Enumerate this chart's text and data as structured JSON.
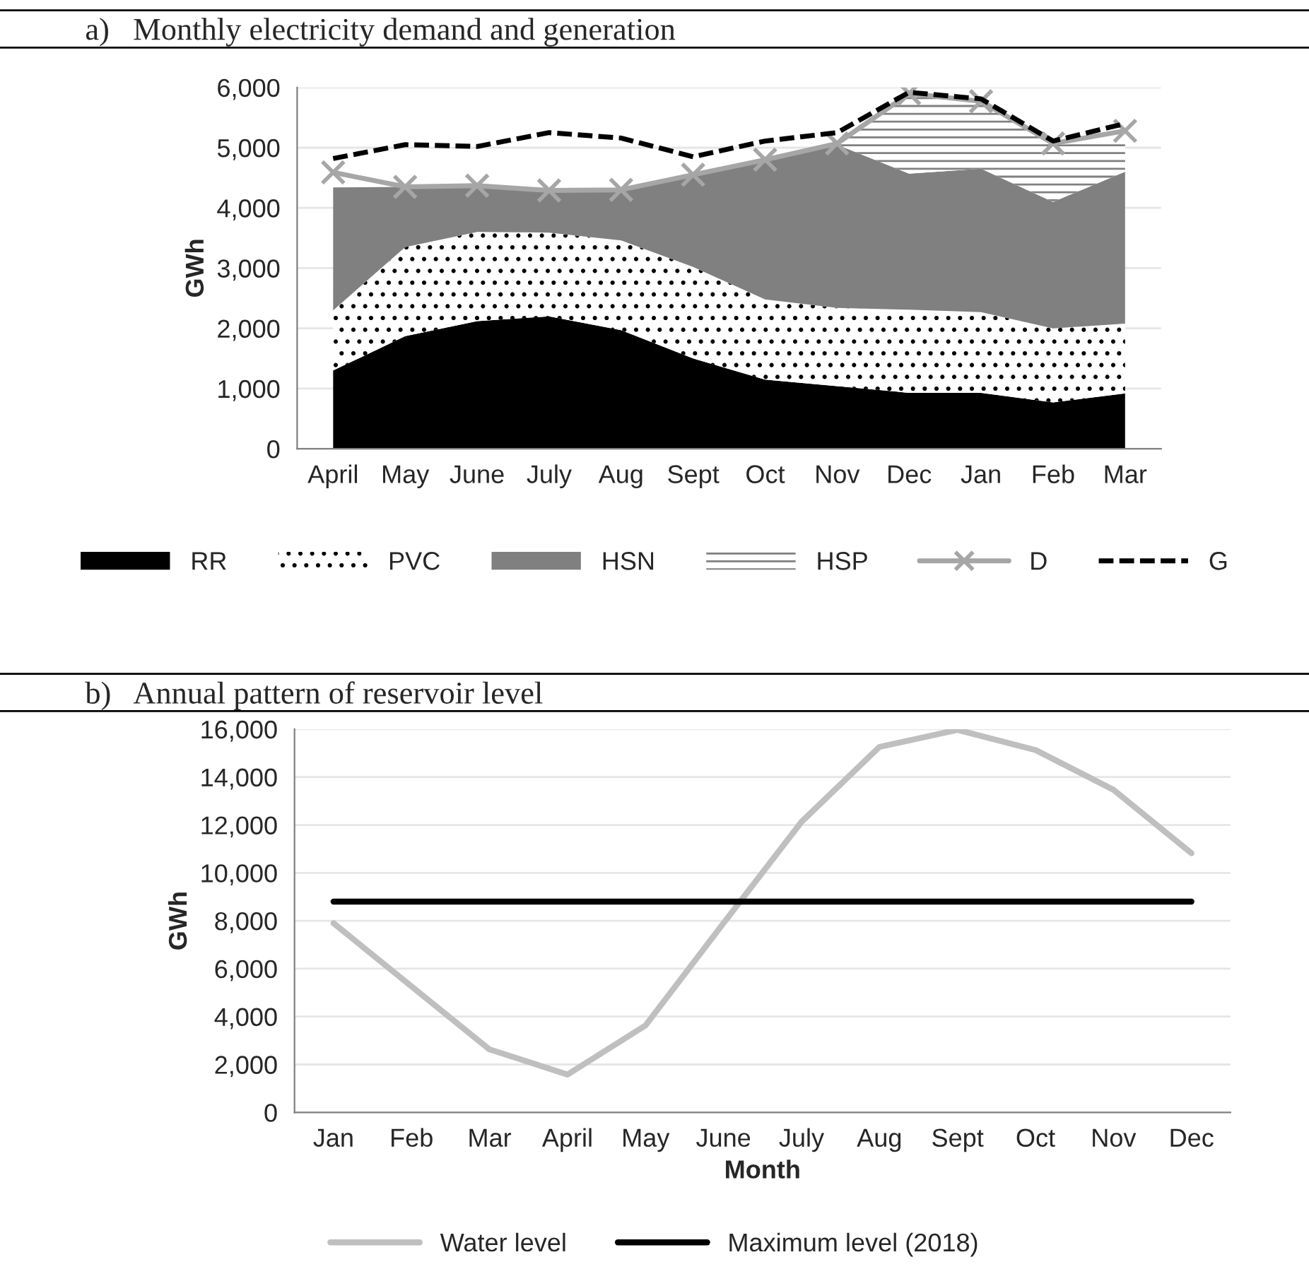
{
  "chart_data": [
    {
      "type": "area",
      "title": "a)   Monthly electricity demand and generation",
      "ylabel": "GWh",
      "stacked": true,
      "categories": [
        "April",
        "May",
        "June",
        "July",
        "Aug",
        "Sept",
        "Oct",
        "Nov",
        "Dec",
        "Jan",
        "Feb",
        "Mar"
      ],
      "series": [
        {
          "name": "RR",
          "color": "#000000",
          "values": [
            1300,
            1870,
            2120,
            2200,
            1970,
            1500,
            1150,
            1040,
            930,
            930,
            770,
            920
          ]
        },
        {
          "name": "PVC",
          "color": "#ffffff",
          "values": [
            1000,
            1480,
            1480,
            1390,
            1490,
            1520,
            1330,
            1300,
            1380,
            1340,
            1230,
            1160
          ]
        },
        {
          "name": "HSN",
          "color": "#808080",
          "values": [
            2040,
            1000,
            750,
            710,
            840,
            1500,
            2290,
            2710,
            2260,
            2380,
            2100,
            2520
          ]
        },
        {
          "name": "HSP",
          "color": "#ffffff",
          "values": [
            0,
            0,
            0,
            0,
            0,
            0,
            0,
            0,
            1300,
            1120,
            950,
            480
          ]
        },
        {
          "name": "D",
          "type": "line",
          "color": "#a6a6a6",
          "marker": "cross",
          "line_style": "solid",
          "values": [
            4590,
            4350,
            4370,
            4290,
            4300,
            4550,
            4800,
            5070,
            5900,
            5770,
            5070,
            5280
          ]
        },
        {
          "name": "G",
          "type": "line",
          "color": "#000000",
          "marker": "none",
          "line_style": "dashed",
          "values": [
            4820,
            5050,
            5020,
            5250,
            5160,
            4850,
            5110,
            5250,
            5920,
            5810,
            5110,
            5400
          ]
        }
      ],
      "ylim": [
        0,
        6000
      ],
      "yticks": [
        {
          "value": 0,
          "label": "0"
        },
        {
          "value": 1000,
          "label": "1,000"
        },
        {
          "value": 2000,
          "label": "2,000"
        },
        {
          "value": 3000,
          "label": "3,000"
        },
        {
          "value": 4000,
          "label": "4,000"
        },
        {
          "value": 5000,
          "label": "5,000"
        },
        {
          "value": 6000,
          "label": "6,000"
        }
      ],
      "grid": "y",
      "legend": "bottom"
    },
    {
      "type": "line",
      "title": "b)   Annual pattern of reservoir level",
      "xlabel": "Month",
      "ylabel": "GWh",
      "categories": [
        "Jan",
        "Feb",
        "Mar",
        "April",
        "May",
        "June",
        "July",
        "Aug",
        "Sept",
        "Oct",
        "Nov",
        "Dec"
      ],
      "series": [
        {
          "name": "Water level",
          "color": "#bfbfbf",
          "values": [
            7900,
            5260,
            2630,
            1580,
            3630,
            7900,
            12130,
            15260,
            15970,
            15130,
            13470,
            10820
          ]
        },
        {
          "name": "Maximum level (2018)",
          "color": "#000000",
          "values": [
            8800,
            8800,
            8800,
            8800,
            8800,
            8800,
            8800,
            8800,
            8800,
            8800,
            8800,
            8800
          ]
        }
      ],
      "ylim": [
        0,
        16000
      ],
      "yticks": [
        {
          "value": 0,
          "label": "0"
        },
        {
          "value": 2000,
          "label": "2,000"
        },
        {
          "value": 4000,
          "label": "4,000"
        },
        {
          "value": 6000,
          "label": "6,000"
        },
        {
          "value": 8000,
          "label": "8,000"
        },
        {
          "value": 10000,
          "label": "10,000"
        },
        {
          "value": 12000,
          "label": "12,000"
        },
        {
          "value": 14000,
          "label": "14,000"
        },
        {
          "value": 16000,
          "label": "16,000"
        }
      ],
      "grid": "y",
      "legend": "bottom"
    }
  ]
}
